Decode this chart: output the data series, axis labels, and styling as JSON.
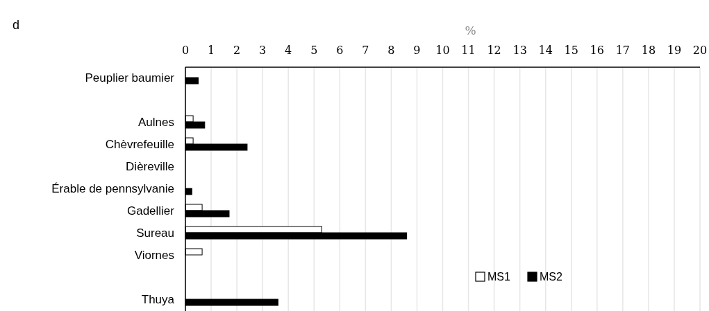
{
  "chart_data": {
    "type": "bar",
    "orientation": "horizontal",
    "title": "%",
    "annotations": [
      "d"
    ],
    "categories": [
      "Peuplier baumier",
      null,
      "Aulnes",
      "Chèvrefeuille",
      "Dièreville",
      "Érable de pennsylvanie",
      "Gadellier",
      "Sureau",
      "Viornes",
      null,
      "Thuya"
    ],
    "series": [
      {
        "name": "MS1",
        "color": "#ffffff",
        "values": [
          0,
          null,
          0.3,
          0.3,
          0,
          0,
          0.65,
          5.3,
          0.65,
          null,
          0
        ]
      },
      {
        "name": "MS2",
        "color": "#000000",
        "values": [
          0.5,
          null,
          0.75,
          2.4,
          0,
          0.25,
          1.7,
          8.6,
          0,
          null,
          3.6
        ]
      }
    ],
    "xlim": [
      0,
      20
    ],
    "xticks": [
      0,
      1,
      2,
      3,
      4,
      5,
      6,
      7,
      8,
      9,
      10,
      11,
      12,
      13,
      14,
      15,
      16,
      17,
      18,
      19,
      20
    ],
    "grid": "x",
    "legend": "bottom right"
  }
}
